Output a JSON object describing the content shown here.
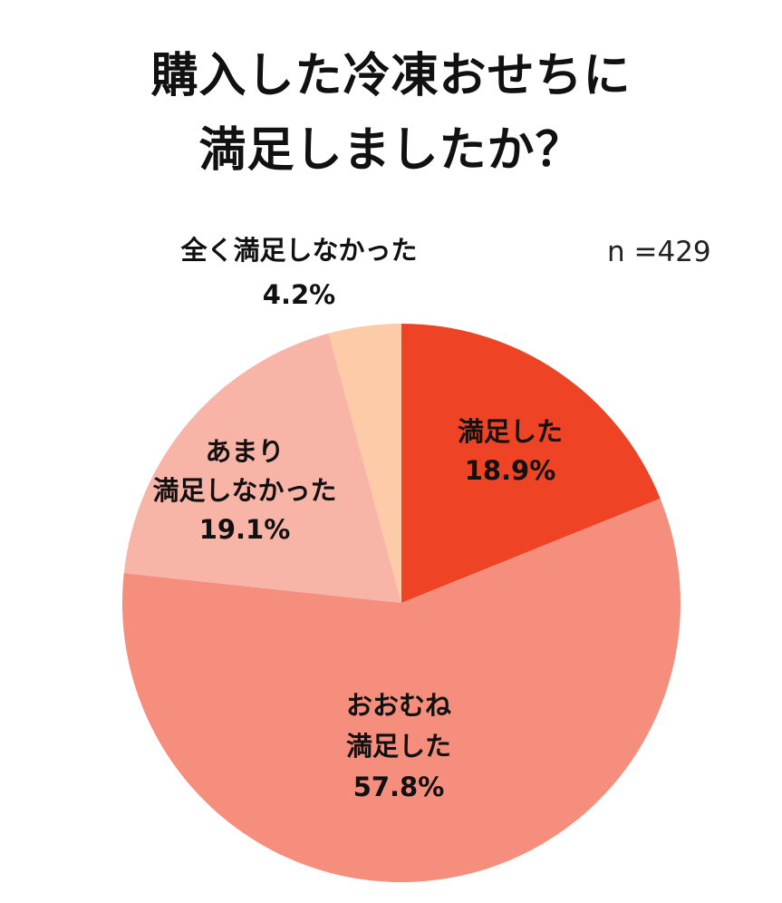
{
  "title": {
    "line1": "購入した冷凍おせちに",
    "line2": "満足しましたか？"
  },
  "sample_size": "n =429",
  "labels": {
    "satisfied": {
      "line1": "満足した",
      "value": "18.9%"
    },
    "mostly_satisfied": {
      "line1": "おおむね",
      "line2": "満足した",
      "value": "57.8%"
    },
    "not_very_satisfied": {
      "line1": "あまり",
      "line2": "満足しなかった",
      "value": "19.1%"
    },
    "not_at_all": {
      "line1": "全く満足しなかった",
      "value": "4.2%"
    }
  },
  "colors": {
    "satisfied": "#EE4325",
    "mostly_satisfied": "#F58E7D",
    "not_very_satisfied": "#F8B4A6",
    "not_at_all": "#FECBA8"
  },
  "chart_data": {
    "type": "pie",
    "title": "購入した冷凍おせちに満足しましたか？",
    "annotation": "n =429",
    "categories": [
      "満足した",
      "おおむね満足した",
      "あまり満足しなかった",
      "全く満足しなかった"
    ],
    "values": [
      18.9,
      57.8,
      19.1,
      4.2
    ],
    "unit": "%",
    "colors": [
      "#EE4325",
      "#F58E7D",
      "#F8B4A6",
      "#FECBA8"
    ],
    "start_angle": "12 o'clock, clockwise",
    "legend": "none (labels inside slices)"
  }
}
